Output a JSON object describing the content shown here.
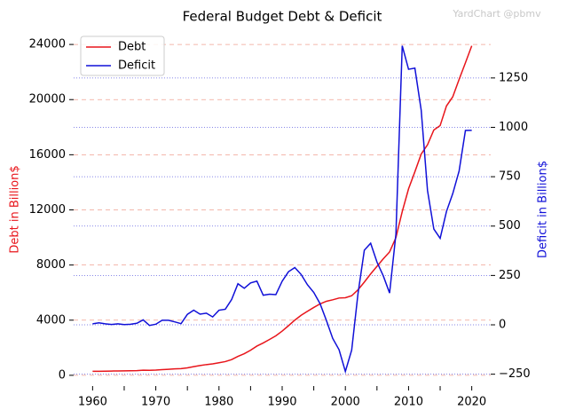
{
  "chart_data": {
    "type": "line",
    "title": "Federal Budget Debt & Deficit",
    "watermark": "YardChart @pbmv",
    "y_label": "Debt in Billion$",
    "y2_label": "Deficit in Billion$",
    "legend": "upper left",
    "x": [
      1960,
      1961,
      1962,
      1963,
      1964,
      1965,
      1966,
      1967,
      1968,
      1969,
      1970,
      1971,
      1972,
      1973,
      1974,
      1975,
      1976,
      1977,
      1978,
      1979,
      1980,
      1981,
      1982,
      1983,
      1984,
      1985,
      1986,
      1987,
      1988,
      1989,
      1990,
      1991,
      1992,
      1993,
      1994,
      1995,
      1996,
      1997,
      1998,
      1999,
      2000,
      2001,
      2002,
      2003,
      2004,
      2005,
      2006,
      2007,
      2008,
      2009,
      2010,
      2011,
      2012,
      2013,
      2014,
      2015,
      2016,
      2017,
      2018,
      2019,
      2020
    ],
    "xlim": [
      1957,
      2023
    ],
    "xticks": [
      1960,
      1970,
      1980,
      1990,
      2000,
      2010,
      2020
    ],
    "xminorticks": [
      1965,
      1975,
      1985,
      1995,
      2005,
      2015
    ],
    "ylim": [
      -780,
      24650
    ],
    "yticks": [
      0,
      4000,
      8000,
      12000,
      16000,
      20000,
      24000
    ],
    "y2lim": [
      -310,
      1465
    ],
    "y2ticks": [
      {
        "value": -250,
        "label": "−250"
      },
      0,
      250,
      500,
      750,
      1000,
      1250
    ],
    "series": [
      {
        "name": "Debt",
        "color": "#e8151b",
        "axis": "y",
        "values": [
          290,
          292,
          302,
          310,
          316,
          322,
          328,
          340,
          368,
          365,
          380,
          408,
          436,
          466,
          484,
          542,
          629,
          706,
          777,
          829,
          909,
          995,
          1137,
          1372,
          1565,
          1817,
          2121,
          2346,
          2601,
          2868,
          3206,
          3598,
          4002,
          4351,
          4643,
          4921,
          5181,
          5369,
          5478,
          5606,
          5629,
          5770,
          6198,
          6760,
          7355,
          7905,
          8451,
          8951,
          9986,
          11876,
          13529,
          14764,
          16051,
          16719,
          17794,
          18120,
          19539,
          20206,
          21462,
          22669,
          23900
        ]
      },
      {
        "name": "Deficit",
        "color": "#1010d8",
        "axis": "y2",
        "values": [
          5,
          10,
          5,
          2,
          5,
          1,
          3,
          8,
          25,
          -3,
          3,
          23,
          23,
          15,
          6,
          53,
          74,
          54,
          59,
          40,
          74,
          79,
          128,
          208,
          185,
          212,
          221,
          150,
          155,
          153,
          221,
          269,
          290,
          255,
          203,
          164,
          107,
          22,
          -69,
          -126,
          -236,
          -128,
          158,
          378,
          413,
          318,
          248,
          161,
          459,
          1413,
          1294,
          1300,
          1087,
          680,
          485,
          438,
          574,
          665,
          779,
          984,
          985
        ]
      }
    ]
  }
}
